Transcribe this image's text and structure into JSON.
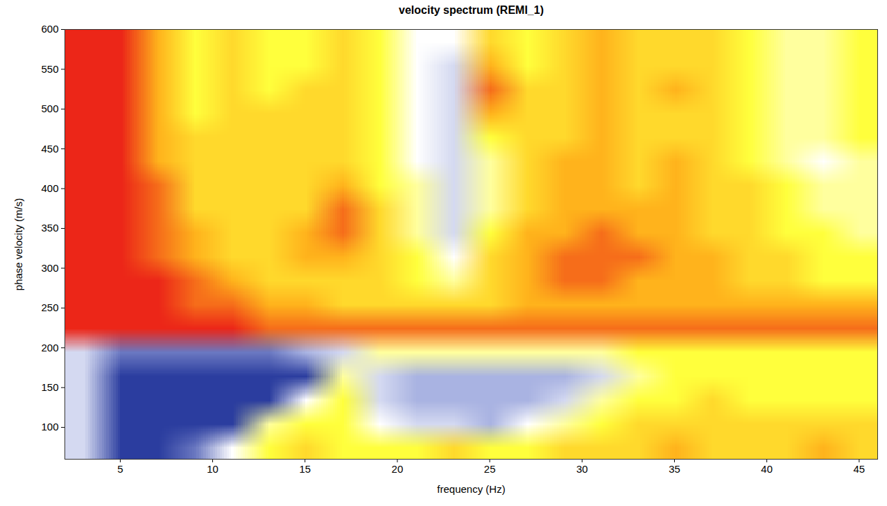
{
  "chart_data": {
    "type": "heatmap",
    "title": "velocity spectrum (REMI_1)",
    "x_label": "frequency (Hz)",
    "y_label": "phase velocity (m/s)",
    "xlim": [
      2,
      46
    ],
    "ylim": [
      60,
      600
    ],
    "xticks": [
      5,
      10,
      15,
      20,
      25,
      30,
      35,
      40,
      45
    ],
    "yticks": [
      100,
      150,
      200,
      250,
      300,
      350,
      400,
      450,
      500,
      550,
      600
    ],
    "x": [
      3,
      5,
      7,
      9,
      11,
      13,
      15,
      17,
      19,
      21,
      23,
      25,
      27,
      29,
      31,
      33,
      35,
      37,
      39,
      41,
      43,
      45
    ],
    "y": [
      585,
      555,
      525,
      495,
      465,
      435,
      405,
      375,
      345,
      315,
      285,
      255,
      225,
      195,
      165,
      135,
      105,
      75
    ],
    "z": [
      [
        10,
        10,
        8,
        6,
        7,
        6,
        6,
        7,
        6,
        4,
        4,
        7,
        6,
        7,
        8,
        7,
        7,
        7,
        6,
        5,
        5,
        6
      ],
      [
        10,
        10,
        8,
        6,
        7,
        6,
        6,
        7,
        6,
        4,
        3,
        8,
        6,
        7,
        8,
        7,
        7,
        7,
        6,
        5,
        5,
        6
      ],
      [
        10,
        10,
        8,
        6,
        7,
        6,
        7,
        7,
        6,
        4,
        3,
        9,
        7,
        7,
        8,
        7,
        8,
        7,
        6,
        5,
        5,
        6
      ],
      [
        10,
        10,
        8,
        6,
        7,
        7,
        7,
        7,
        6,
        4,
        3,
        8,
        7,
        7,
        8,
        7,
        7,
        7,
        6,
        5,
        5,
        6
      ],
      [
        10,
        10,
        8,
        7,
        7,
        7,
        7,
        7,
        6,
        4,
        3,
        6,
        7,
        7,
        8,
        7,
        7,
        7,
        6,
        5,
        5,
        6
      ],
      [
        10,
        10,
        8,
        7,
        7,
        7,
        7,
        7,
        6,
        4,
        3,
        5,
        7,
        8,
        8,
        7,
        8,
        7,
        6,
        5,
        4,
        5
      ],
      [
        10,
        10,
        9,
        7,
        7,
        7,
        7,
        8,
        6,
        5,
        3,
        5,
        7,
        8,
        8,
        7,
        8,
        7,
        7,
        6,
        5,
        5
      ],
      [
        10,
        10,
        9,
        7,
        7,
        7,
        7,
        9,
        7,
        5,
        3,
        5,
        7,
        8,
        8,
        8,
        8,
        7,
        7,
        6,
        5,
        5
      ],
      [
        10,
        10,
        9,
        8,
        7,
        7,
        8,
        9,
        7,
        5,
        3,
        6,
        8,
        8,
        9,
        8,
        8,
        7,
        7,
        6,
        6,
        5
      ],
      [
        10,
        10,
        9,
        8,
        7,
        7,
        8,
        8,
        7,
        6,
        4,
        7,
        8,
        9,
        9,
        9,
        8,
        8,
        7,
        7,
        6,
        6
      ],
      [
        10,
        10,
        10,
        9,
        8,
        7,
        7,
        7,
        7,
        6,
        5,
        7,
        8,
        9,
        9,
        8,
        8,
        8,
        7,
        7,
        6,
        6
      ],
      [
        10,
        10,
        10,
        9,
        9,
        8,
        8,
        7,
        7,
        7,
        7,
        7,
        8,
        8,
        8,
        8,
        8,
        8,
        8,
        8,
        8,
        8
      ],
      [
        10,
        10,
        10,
        10,
        10,
        9,
        9,
        9,
        9,
        9,
        9,
        9,
        9,
        9,
        9,
        9,
        9,
        9,
        9,
        9,
        9,
        9
      ],
      [
        3,
        1,
        1,
        1,
        1,
        1,
        2,
        3,
        5,
        5,
        5,
        5,
        5,
        5,
        5,
        6,
        6,
        6,
        6,
        6,
        6,
        6
      ],
      [
        3,
        0,
        0,
        0,
        0,
        0,
        0,
        5,
        3,
        2,
        2,
        2,
        2,
        2,
        3,
        5,
        6,
        6,
        6,
        6,
        6,
        6
      ],
      [
        3,
        0,
        0,
        0,
        0,
        0,
        4,
        6,
        3,
        2,
        2,
        2,
        2,
        3,
        5,
        6,
        6,
        7,
        6,
        6,
        6,
        6
      ],
      [
        3,
        0,
        0,
        0,
        0,
        5,
        6,
        6,
        4,
        3,
        3,
        2,
        4,
        5,
        6,
        7,
        7,
        7,
        7,
        7,
        7,
        7
      ],
      [
        3,
        0,
        0,
        1,
        4,
        6,
        7,
        6,
        6,
        6,
        7,
        6,
        6,
        7,
        7,
        7,
        8,
        7,
        7,
        7,
        8,
        7
      ]
    ]
  }
}
